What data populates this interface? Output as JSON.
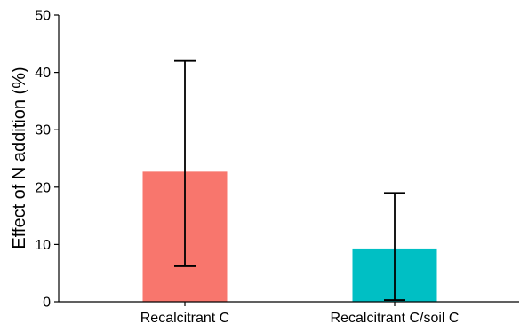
{
  "chart_data": {
    "type": "bar",
    "title": "",
    "xlabel": "",
    "ylabel": "Effect of N addition (%)",
    "ylim": [
      0,
      50
    ],
    "yticks": [
      0,
      10,
      20,
      30,
      40,
      50
    ],
    "yticks_labels": [
      "0",
      "10",
      "20",
      "30",
      "40",
      "50"
    ],
    "categories": [
      "Recalcitrant C",
      "Recalcitrant C/soil C"
    ],
    "values": [
      22.7,
      9.3
    ],
    "error_lower": [
      6.2,
      0.3
    ],
    "error_upper": [
      42.0,
      19.0
    ],
    "colors": [
      "#F8766D",
      "#00BFC4"
    ],
    "grid": false,
    "legend": "none"
  }
}
